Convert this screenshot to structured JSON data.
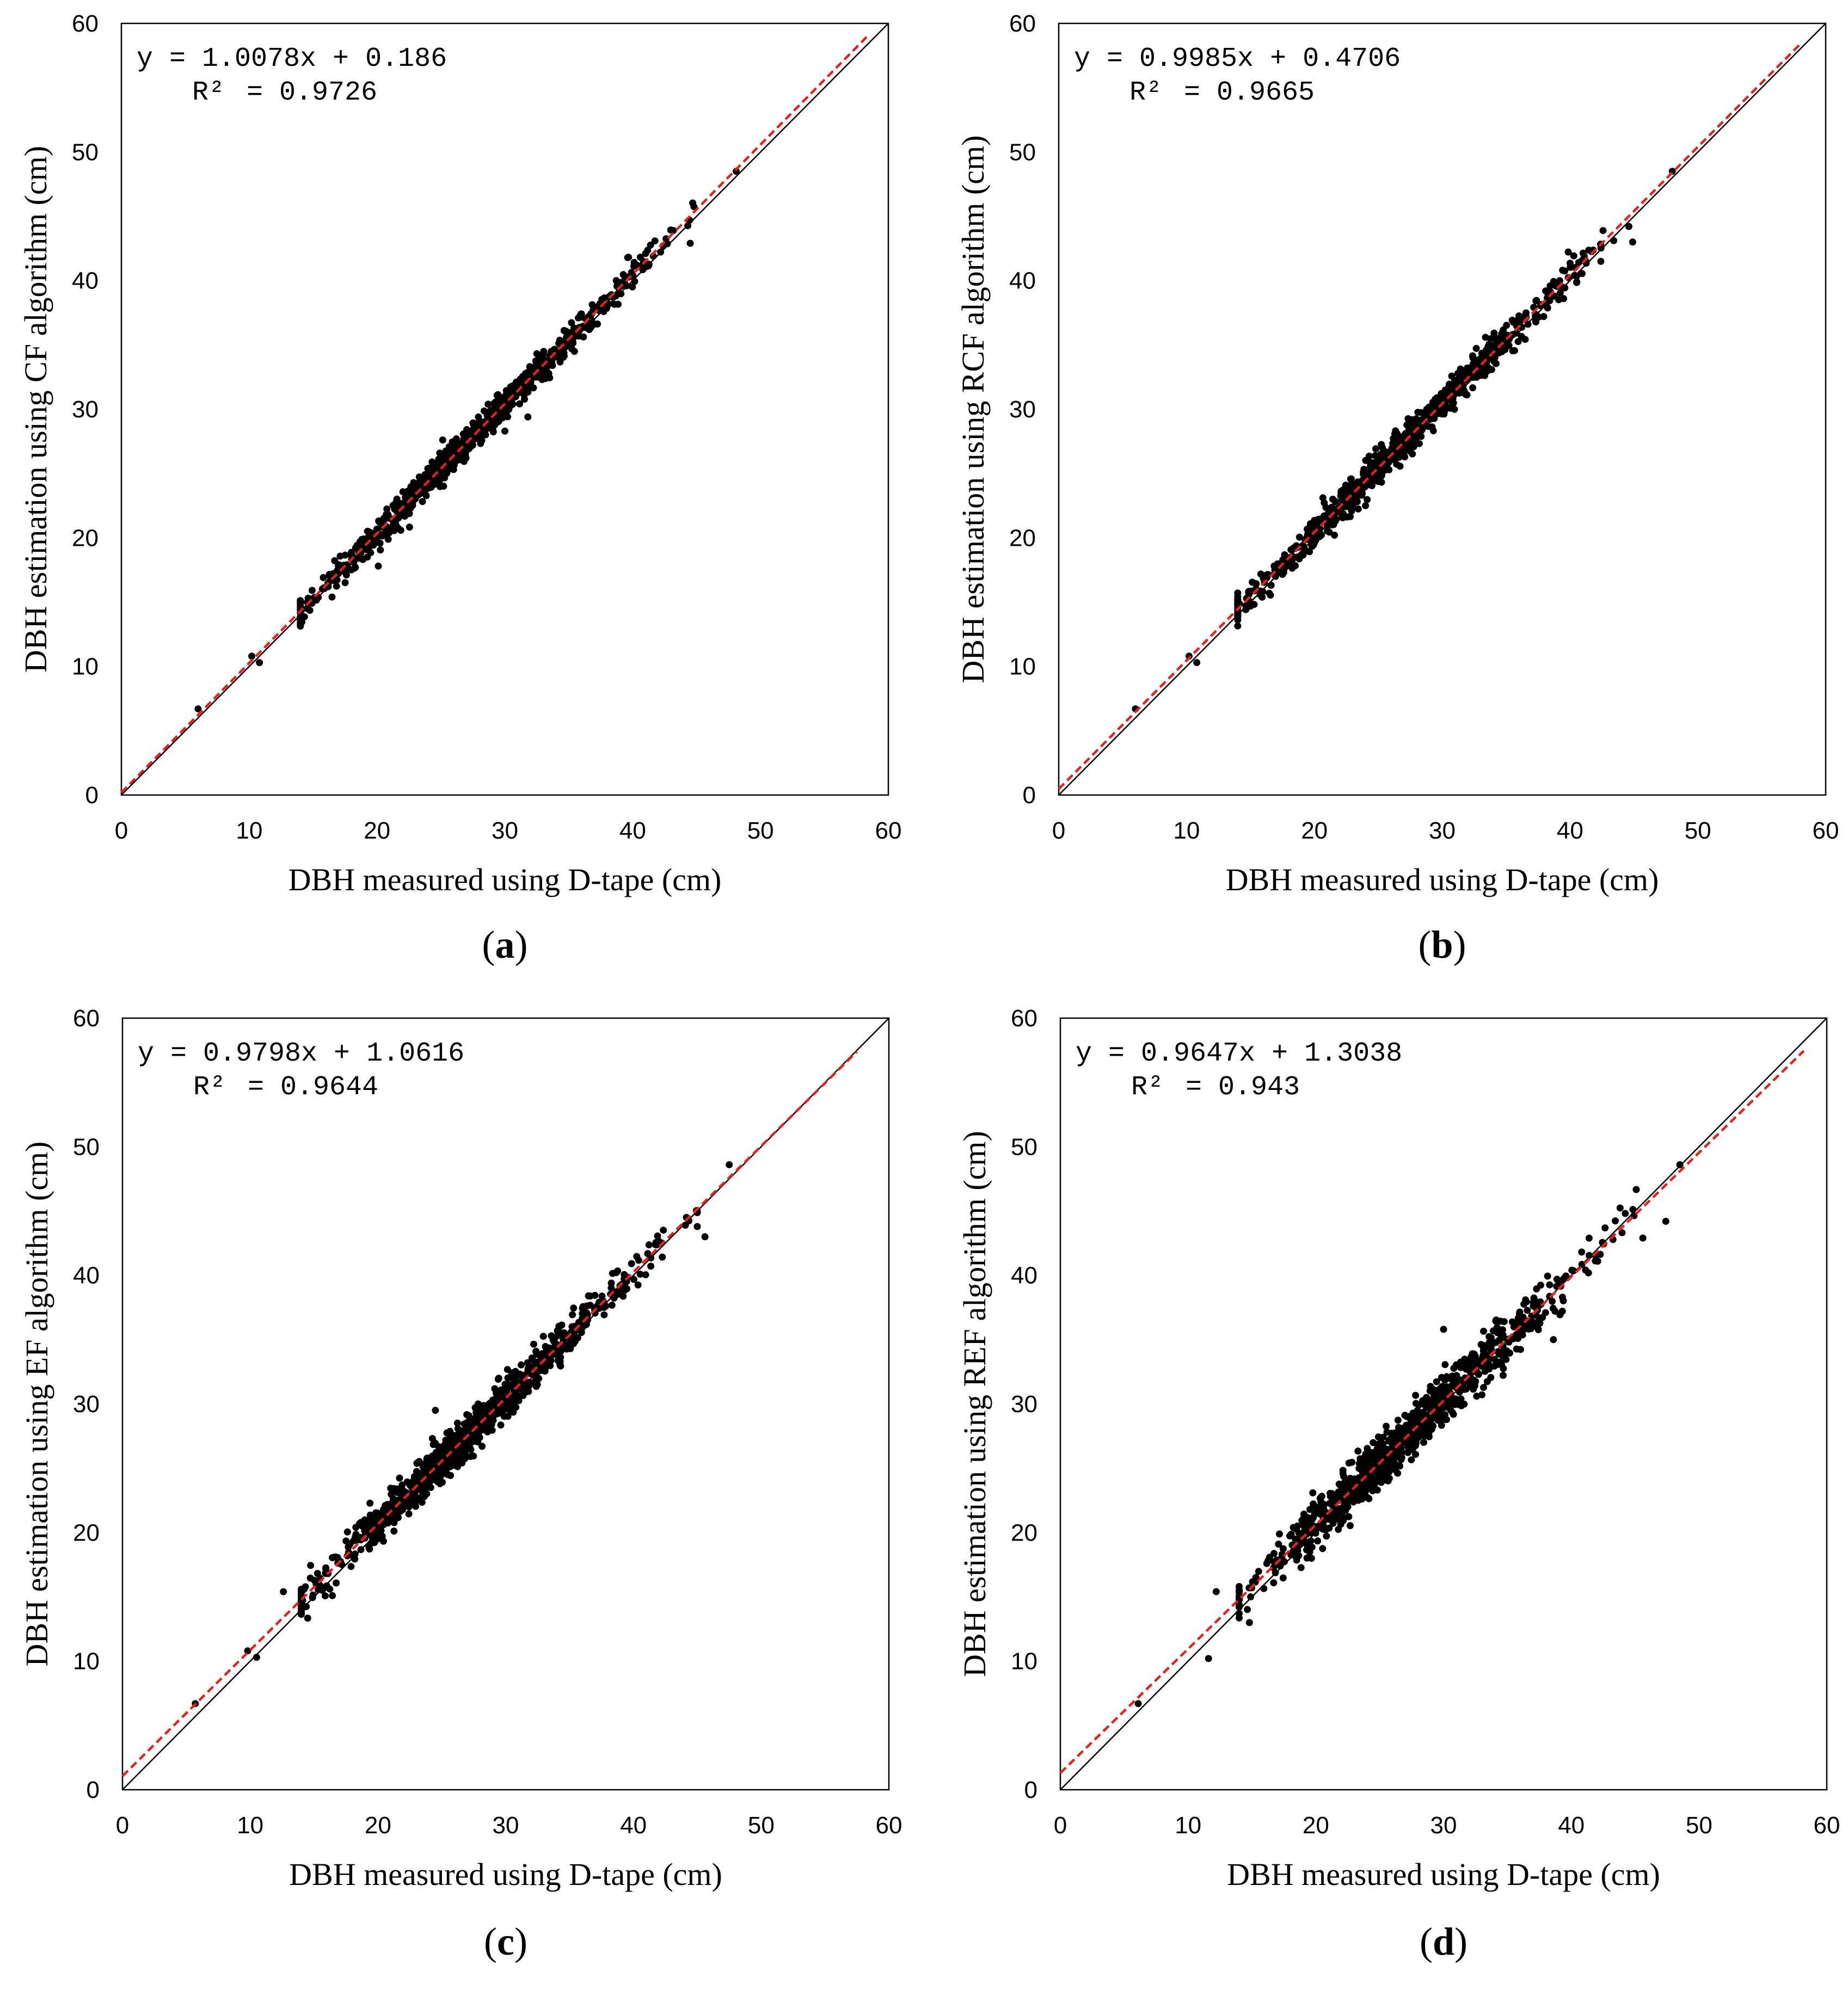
{
  "figure": {
    "axis_ticks": [
      "0",
      "10",
      "20",
      "30",
      "40",
      "50",
      "60"
    ],
    "colors": {
      "points": "#000000",
      "identity_line": "#000000",
      "fit_line": "#e8201c",
      "frame": "#000000"
    }
  },
  "chart_data": [
    {
      "type": "scatter",
      "panel_label": "a",
      "xlabel": "DBH measured using D-tape (cm)",
      "ylabel": "DBH estimation using CF algorithm (cm)",
      "xlim": [
        0,
        60
      ],
      "ylim": [
        0,
        60
      ],
      "equation": "y = 1.0078x + 0.186",
      "r2_label": "R²",
      "r2_text": "= 0.9726",
      "fit": {
        "slope": 1.0078,
        "intercept": 0.186,
        "x_end": 58.4
      },
      "identity_line": true,
      "n_points_estimated": 900,
      "noise_sd_estimated": 0.55,
      "points_x_range": [
        6,
        48
      ],
      "notable_points": [
        [
          6.0,
          6.7
        ],
        [
          10.2,
          10.8
        ],
        [
          10.8,
          10.3
        ],
        [
          48.1,
          48.5
        ],
        [
          44.5,
          42.9
        ],
        [
          31.8,
          29.4
        ],
        [
          30.0,
          28.3
        ],
        [
          20.1,
          17.8
        ]
      ]
    },
    {
      "type": "scatter",
      "panel_label": "b",
      "xlabel": "DBH measured using D-tape (cm)",
      "ylabel": "DBH estimation using RCF algorithm (cm)",
      "xlim": [
        0,
        60
      ],
      "ylim": [
        0,
        60
      ],
      "equation": "y = 0.9985x + 0.4706",
      "r2_label": "R²",
      "r2_text": "= 0.9665",
      "fit": {
        "slope": 0.9985,
        "intercept": 0.4706,
        "x_end": 58.0
      },
      "identity_line": true,
      "n_points_estimated": 900,
      "noise_sd_estimated": 0.6,
      "points_x_range": [
        6,
        48
      ],
      "notable_points": [
        [
          6.0,
          6.7
        ],
        [
          10.2,
          10.8
        ],
        [
          10.8,
          10.3
        ],
        [
          48.0,
          48.5
        ],
        [
          44.9,
          43.0
        ],
        [
          24.0,
          22.5
        ],
        [
          39.5,
          38.6
        ]
      ]
    },
    {
      "type": "scatter",
      "panel_label": "c",
      "xlabel": "DBH measured using D-tape (cm)",
      "ylabel": "DBH estimation using EF algorithm (cm)",
      "xlim": [
        0,
        60
      ],
      "ylim": [
        0,
        60
      ],
      "equation": "y = 0.9798x + 1.0616",
      "r2_label": "R²",
      "r2_text": "= 0.9644",
      "fit": {
        "slope": 0.9798,
        "intercept": 1.0616,
        "x_end": 57.5
      },
      "identity_line": true,
      "n_points_estimated": 950,
      "noise_sd_estimated": 0.75,
      "points_x_range": [
        6,
        48
      ],
      "notable_points": [
        [
          5.7,
          6.7
        ],
        [
          9.8,
          10.8
        ],
        [
          10.5,
          10.3
        ],
        [
          47.5,
          48.6
        ],
        [
          45.6,
          43.0
        ],
        [
          12.6,
          15.4
        ],
        [
          24.5,
          29.5
        ]
      ]
    },
    {
      "type": "scatter",
      "panel_label": "d",
      "xlabel": "DBH measured using D-tape (cm)",
      "ylabel": "DBH estimation using REF algorithm (cm)",
      "xlim": [
        0,
        60
      ],
      "ylim": [
        0,
        60
      ],
      "equation": "y = 0.9647x + 1.3038",
      "r2_label": "R²",
      "r2_text": "= 0.943",
      "fit": {
        "slope": 0.9647,
        "intercept": 1.3038,
        "x_end": 58.2
      },
      "identity_line": true,
      "n_points_estimated": 950,
      "noise_sd_estimated": 0.95,
      "points_x_range": [
        6,
        49
      ],
      "notable_points": [
        [
          6.1,
          6.7
        ],
        [
          11.6,
          10.2
        ],
        [
          12.2,
          15.4
        ],
        [
          48.5,
          48.6
        ],
        [
          47.4,
          44.2
        ],
        [
          45.6,
          42.9
        ],
        [
          38.6,
          35.0
        ],
        [
          30.0,
          35.8
        ]
      ]
    }
  ]
}
